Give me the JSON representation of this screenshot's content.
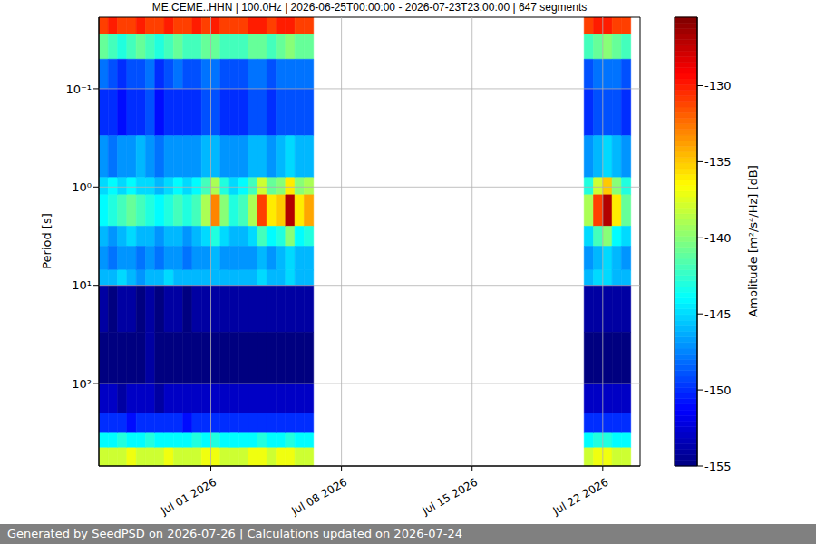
{
  "chart_data": {
    "type": "heatmap",
    "title": "ME.CEME..HHN | 100.0Hz | 2026-06-25T00:00:00 - 2026-07-23T23:00:00 | 647 segments",
    "y_label": "Period [s]",
    "log": "y",
    "grid": true,
    "xlim": [
      "2026-06-25T00:00:00",
      "2026-07-24T00:00:00"
    ],
    "xticks": [
      {
        "value": "2026-07-01T00:00:00",
        "label": "Jul 01 2026"
      },
      {
        "value": "2026-07-08T00:00:00",
        "label": "Jul 08 2026"
      },
      {
        "value": "2026-07-15T00:00:00",
        "label": "Jul 15 2026"
      },
      {
        "value": "2026-07-22T00:00:00",
        "label": "Jul 22 2026"
      }
    ],
    "ylim": [
      0.0187,
      690
    ],
    "yticks": [
      {
        "value": 0.1,
        "label": "10⁻¹"
      },
      {
        "value": 1,
        "label": "10⁰"
      },
      {
        "value": 10,
        "label": "10¹"
      },
      {
        "value": 100,
        "label": "10²"
      }
    ],
    "x_bins": [
      "2026-06-25T00:00:00",
      "2026-06-25T12:00:00",
      "2026-06-26T00:00:00",
      "2026-06-26T12:00:00",
      "2026-06-27T00:00:00",
      "2026-06-27T12:00:00",
      "2026-06-28T00:00:00",
      "2026-06-28T12:00:00",
      "2026-06-29T00:00:00",
      "2026-06-29T12:00:00",
      "2026-06-30T00:00:00",
      "2026-06-30T12:00:00",
      "2026-07-01T00:00:00",
      "2026-07-01T12:00:00",
      "2026-07-02T00:00:00",
      "2026-07-02T12:00:00",
      "2026-07-03T00:00:00",
      "2026-07-03T12:00:00",
      "2026-07-04T00:00:00",
      "2026-07-04T12:00:00",
      "2026-07-05T00:00:00",
      "2026-07-05T12:00:00",
      "2026-07-06T00:00:00",
      "2026-07-06T12:00:00",
      "2026-07-07T00:00:00",
      "2026-07-07T12:00:00",
      "2026-07-08T00:00:00",
      "2026-07-08T12:00:00",
      "2026-07-09T00:00:00",
      "2026-07-09T12:00:00",
      "2026-07-10T00:00:00",
      "2026-07-10T12:00:00",
      "2026-07-11T00:00:00",
      "2026-07-11T12:00:00",
      "2026-07-12T00:00:00",
      "2026-07-12T12:00:00",
      "2026-07-13T00:00:00",
      "2026-07-13T12:00:00",
      "2026-07-14T00:00:00",
      "2026-07-14T12:00:00",
      "2026-07-15T00:00:00",
      "2026-07-15T12:00:00",
      "2026-07-16T00:00:00",
      "2026-07-16T12:00:00",
      "2026-07-17T00:00:00",
      "2026-07-17T12:00:00",
      "2026-07-18T00:00:00",
      "2026-07-18T12:00:00",
      "2026-07-19T00:00:00",
      "2026-07-19T12:00:00",
      "2026-07-20T00:00:00",
      "2026-07-20T12:00:00",
      "2026-07-21T00:00:00",
      "2026-07-21T12:00:00",
      "2026-07-22T00:00:00",
      "2026-07-22T12:00:00",
      "2026-07-23T00:00:00",
      "2026-07-23T12:00:00",
      "2026-07-24T00:00:00"
    ],
    "y_bins": [
      0.0187,
      0.028,
      0.05,
      0.1,
      0.3,
      0.8,
      1.2,
      2.5,
      4,
      7,
      10,
      30,
      100,
      200,
      320,
      450,
      690
    ],
    "z": [
      [
        -131,
        -141,
        -148,
        -150,
        -147,
        -145,
        -144,
        -146,
        -147,
        -146,
        -154,
        -155,
        -153,
        -150,
        -144,
        -138
      ],
      [
        -130,
        -142,
        -149,
        -150,
        -148,
        -144,
        -143,
        -147,
        -148,
        -146,
        -155,
        -155,
        -153,
        -150,
        -144,
        -138
      ],
      [
        -131,
        -143,
        -150,
        -151,
        -147,
        -145,
        -142,
        -146,
        -147,
        -145,
        -154,
        -155,
        -154,
        -150,
        -143,
        -138
      ],
      [
        -131,
        -142,
        -149,
        -150,
        -147,
        -144,
        -141,
        -145,
        -147,
        -146,
        -154,
        -155,
        -153,
        -151,
        -144,
        -137
      ],
      [
        -130,
        -141,
        -149,
        -150,
        -146,
        -145,
        -142,
        -146,
        -148,
        -147,
        -155,
        -155,
        -153,
        -150,
        -144,
        -138
      ],
      [
        -131,
        -142,
        -148,
        -149,
        -147,
        -145,
        -143,
        -146,
        -147,
        -146,
        -154,
        -154,
        -153,
        -150,
        -143,
        -138
      ],
      [
        -131,
        -143,
        -150,
        -151,
        -148,
        -146,
        -144,
        -147,
        -148,
        -146,
        -155,
        -155,
        -154,
        -150,
        -144,
        -138
      ],
      [
        -130,
        -142,
        -149,
        -150,
        -147,
        -145,
        -143,
        -146,
        -147,
        -145,
        -154,
        -155,
        -153,
        -150,
        -144,
        -137
      ],
      [
        -131,
        -141,
        -148,
        -150,
        -147,
        -144,
        -142,
        -146,
        -147,
        -146,
        -154,
        -155,
        -153,
        -150,
        -144,
        -138
      ],
      [
        -131,
        -142,
        -149,
        -150,
        -147,
        -145,
        -143,
        -147,
        -148,
        -146,
        -155,
        -155,
        -153,
        -151,
        -144,
        -138
      ],
      [
        -130,
        -142,
        -149,
        -150,
        -147,
        -144,
        -142,
        -146,
        -147,
        -146,
        -154,
        -155,
        -153,
        -150,
        -143,
        -138
      ],
      [
        -131,
        -141,
        -148,
        -149,
        -146,
        -142,
        -139,
        -145,
        -147,
        -146,
        -154,
        -155,
        -153,
        -150,
        -144,
        -137
      ],
      [
        -130,
        -141,
        -148,
        -149,
        -146,
        -139,
        -133,
        -143,
        -146,
        -146,
        -154,
        -155,
        -153,
        -150,
        -143,
        -137
      ],
      [
        -131,
        -142,
        -149,
        -150,
        -147,
        -143,
        -140,
        -145,
        -147,
        -146,
        -154,
        -155,
        -153,
        -150,
        -144,
        -138
      ],
      [
        -131,
        -142,
        -149,
        -150,
        -147,
        -145,
        -143,
        -146,
        -147,
        -146,
        -154,
        -155,
        -153,
        -150,
        -144,
        -138
      ],
      [
        -131,
        -142,
        -149,
        -150,
        -147,
        -144,
        -142,
        -146,
        -147,
        -146,
        -154,
        -155,
        -153,
        -150,
        -144,
        -138
      ],
      [
        -130,
        -141,
        -148,
        -149,
        -146,
        -142,
        -139,
        -145,
        -147,
        -146,
        -154,
        -155,
        -153,
        -150,
        -144,
        -137
      ],
      [
        -130,
        -141,
        -148,
        -149,
        -146,
        -138,
        -131,
        -142,
        -146,
        -145,
        -154,
        -155,
        -153,
        -150,
        -143,
        -137
      ],
      [
        -131,
        -142,
        -149,
        -150,
        -147,
        -141,
        -136,
        -144,
        -147,
        -146,
        -154,
        -155,
        -153,
        -150,
        -144,
        -138
      ],
      [
        -130,
        -141,
        -148,
        -149,
        -146,
        -140,
        -135,
        -143,
        -146,
        -146,
        -154,
        -155,
        -153,
        -150,
        -144,
        -137
      ],
      [
        -130,
        -140,
        -148,
        -149,
        -145,
        -136,
        -127,
        -140,
        -145,
        -145,
        -154,
        -155,
        -153,
        -150,
        -143,
        -137
      ],
      [
        -131,
        -141,
        -148,
        -149,
        -146,
        -140,
        -136,
        -144,
        -146,
        -146,
        -154,
        -155,
        -153,
        -150,
        -144,
        -138
      ],
      [
        -131,
        -141,
        -148,
        -149,
        -146,
        -139,
        -134,
        -143,
        -146,
        -146,
        -154,
        -155,
        -153,
        -150,
        -144,
        -138
      ],
      null,
      null,
      null,
      null,
      null,
      null,
      null,
      null,
      null,
      null,
      null,
      null,
      null,
      null,
      null,
      null,
      null,
      null,
      null,
      null,
      null,
      null,
      null,
      null,
      null,
      null,
      null,
      null,
      null,
      [
        -131,
        -142,
        -149,
        -150,
        -147,
        -143,
        -139,
        -145,
        -147,
        -146,
        -154,
        -155,
        -153,
        -150,
        -144,
        -138
      ],
      [
        -130,
        -141,
        -148,
        -149,
        -146,
        -138,
        -131,
        -142,
        -146,
        -145,
        -154,
        -155,
        -153,
        -150,
        -143,
        -137
      ],
      [
        -130,
        -140,
        -148,
        -149,
        -145,
        -135,
        -127,
        -140,
        -145,
        -145,
        -154,
        -155,
        -153,
        -150,
        -143,
        -137
      ],
      [
        -131,
        -141,
        -148,
        -149,
        -146,
        -140,
        -136,
        -144,
        -146,
        -146,
        -154,
        -155,
        -153,
        -150,
        -144,
        -138
      ],
      [
        -131,
        -142,
        -149,
        -150,
        -147,
        -143,
        -141,
        -145,
        -147,
        -146,
        -154,
        -155,
        -153,
        -150,
        -144,
        -138
      ]
    ],
    "colorbar": {
      "lim": [
        -155,
        -125.5
      ],
      "ticks": [
        -155,
        -150,
        -145,
        -140,
        -135,
        -130
      ],
      "label": "Amplitude [m²/s⁴/Hz] [dB]"
    },
    "footer": "Generated by SeedPSD on 2026-07-26 | Calculations updated on 2026-07-24"
  }
}
